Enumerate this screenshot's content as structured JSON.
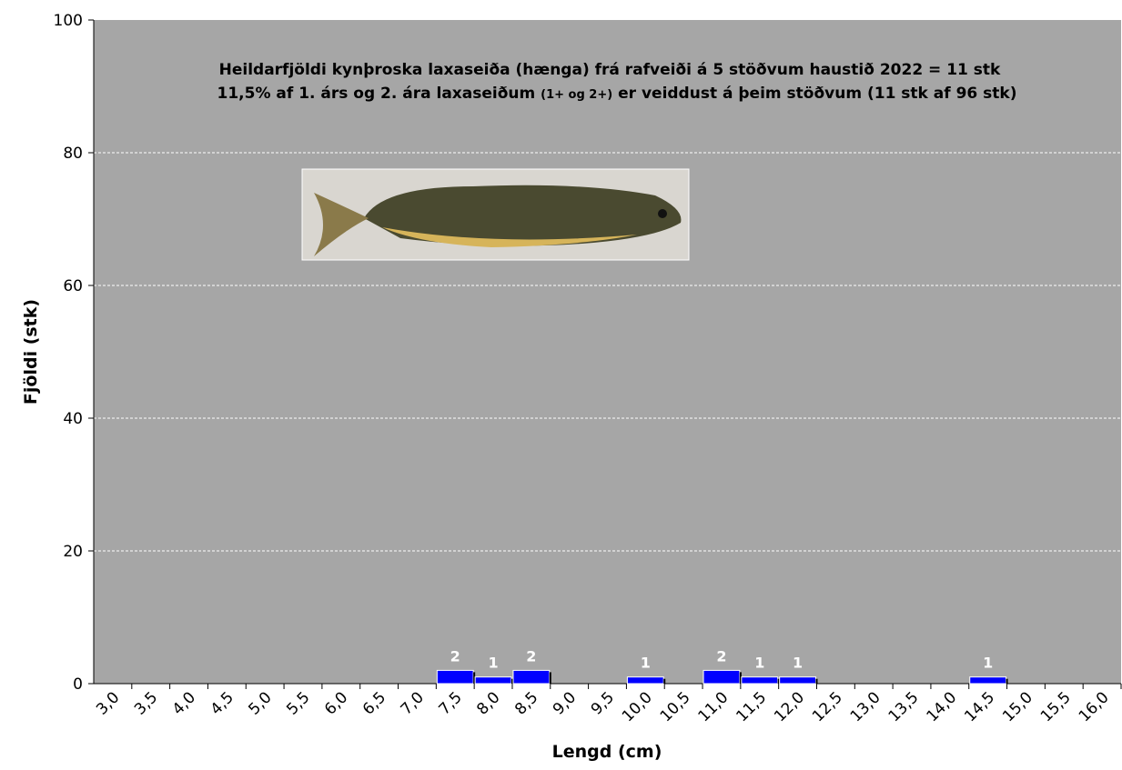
{
  "chart_data": {
    "type": "bar",
    "title_lines": [
      "Heildarfjöldi kynþroska laxaseiða (hænga) frá rafveiði á 5 stöðvum haustið 2022 =  11 stk",
      [
        "11,5% af 1. árs og 2. ára laxaseiðum ",
        "(1+ og 2+)",
        " er veiddust á þeim stöðvum (11 stk af 96 stk)"
      ]
    ],
    "xlabel": "Lengd (cm)",
    "ylabel": "Fjöldi (stk)",
    "categories": [
      "3,0",
      "3,5",
      "4,0",
      "4,5",
      "5,0",
      "5,5",
      "6,0",
      "6,5",
      "7,0",
      "7,5",
      "8,0",
      "8,5",
      "9,0",
      "9,5",
      "10,0",
      "10,5",
      "11,0",
      "11,5",
      "12,0",
      "12,5",
      "13,0",
      "13,5",
      "14,0",
      "14,5",
      "15,0",
      "15,5",
      "16,0"
    ],
    "values": [
      0,
      0,
      0,
      0,
      0,
      0,
      0,
      0,
      0,
      2,
      1,
      2,
      0,
      0,
      1,
      0,
      2,
      1,
      1,
      0,
      0,
      0,
      0,
      1,
      0,
      0,
      0
    ],
    "color": "#0000ff",
    "background": "#a6a6a6",
    "ylim": [
      0,
      100
    ],
    "yticks": [
      0,
      20,
      40,
      60,
      80,
      100
    ],
    "grid": true
  }
}
